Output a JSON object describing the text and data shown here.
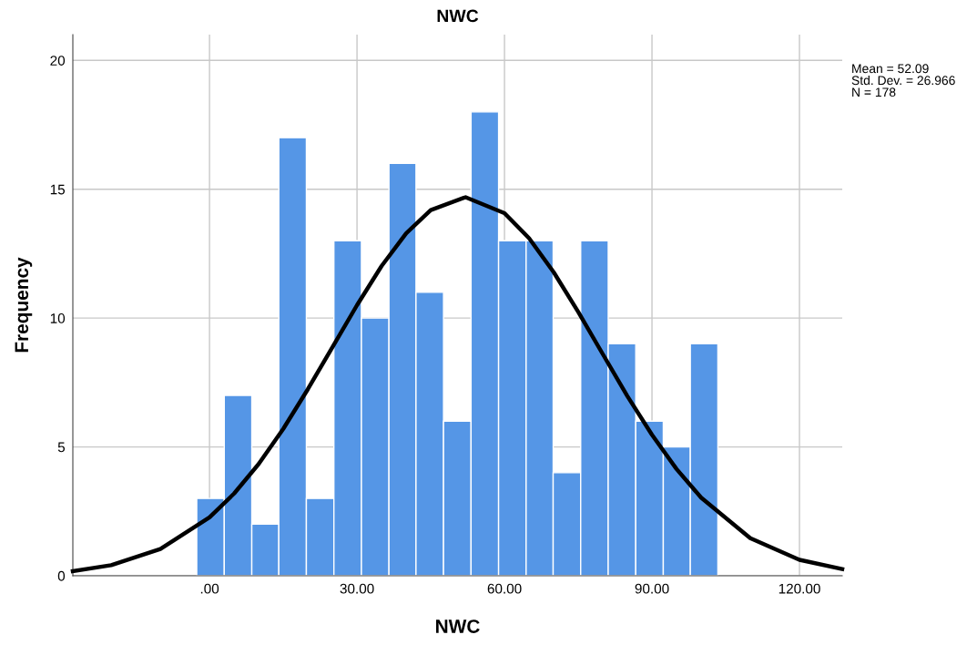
{
  "chart_data": {
    "type": "histogram",
    "title": "NWC",
    "xlabel": "NWC",
    "ylabel": "Frequency",
    "bins": [
      -2.6,
      3.0,
      8.6,
      14.1,
      19.7,
      25.3,
      30.9,
      36.5,
      42.0,
      47.6,
      53.2,
      58.8,
      64.4,
      69.9,
      75.5,
      81.1,
      86.7,
      92.3,
      97.8,
      103.4
    ],
    "values": [
      3,
      7,
      2,
      17,
      3,
      13,
      10,
      16,
      11,
      6,
      18,
      13,
      13,
      4,
      13,
      9,
      6,
      5,
      9
    ],
    "color": "#5596e6",
    "series": [
      {
        "type": "line",
        "color": "#000000",
        "x": [
          -27.8,
          -20,
          -10,
          0,
          5,
          10,
          15,
          20,
          25,
          30,
          35,
          40,
          45,
          52.09,
          60,
          65,
          70,
          75,
          80,
          85,
          90,
          95,
          100,
          110,
          120,
          128.7
        ],
        "values": [
          0.18,
          0.41,
          1.04,
          2.27,
          3.19,
          4.34,
          5.7,
          7.24,
          8.87,
          10.5,
          12.02,
          13.29,
          14.19,
          14.69,
          14.07,
          13.1,
          11.78,
          10.24,
          8.6,
          6.97,
          5.47,
          4.14,
          3.03,
          1.46,
          0.62,
          0.26
        ]
      }
    ],
    "xlim": [
      -27.8,
      128.7
    ],
    "ylim": [
      0,
      21.0
    ],
    "xticks": [
      {
        "value": 0,
        "label": ".00"
      },
      {
        "value": 30,
        "label": "30.00"
      },
      {
        "value": 60,
        "label": "60.00"
      },
      {
        "value": 90,
        "label": "90.00"
      },
      {
        "value": 120,
        "label": "120.00"
      }
    ],
    "yticks": [
      0,
      5,
      10,
      15,
      20
    ],
    "grid": true,
    "annotations": [
      "Mean = 52.09",
      "Std. Dev. = 26.966",
      "N = 178"
    ]
  }
}
